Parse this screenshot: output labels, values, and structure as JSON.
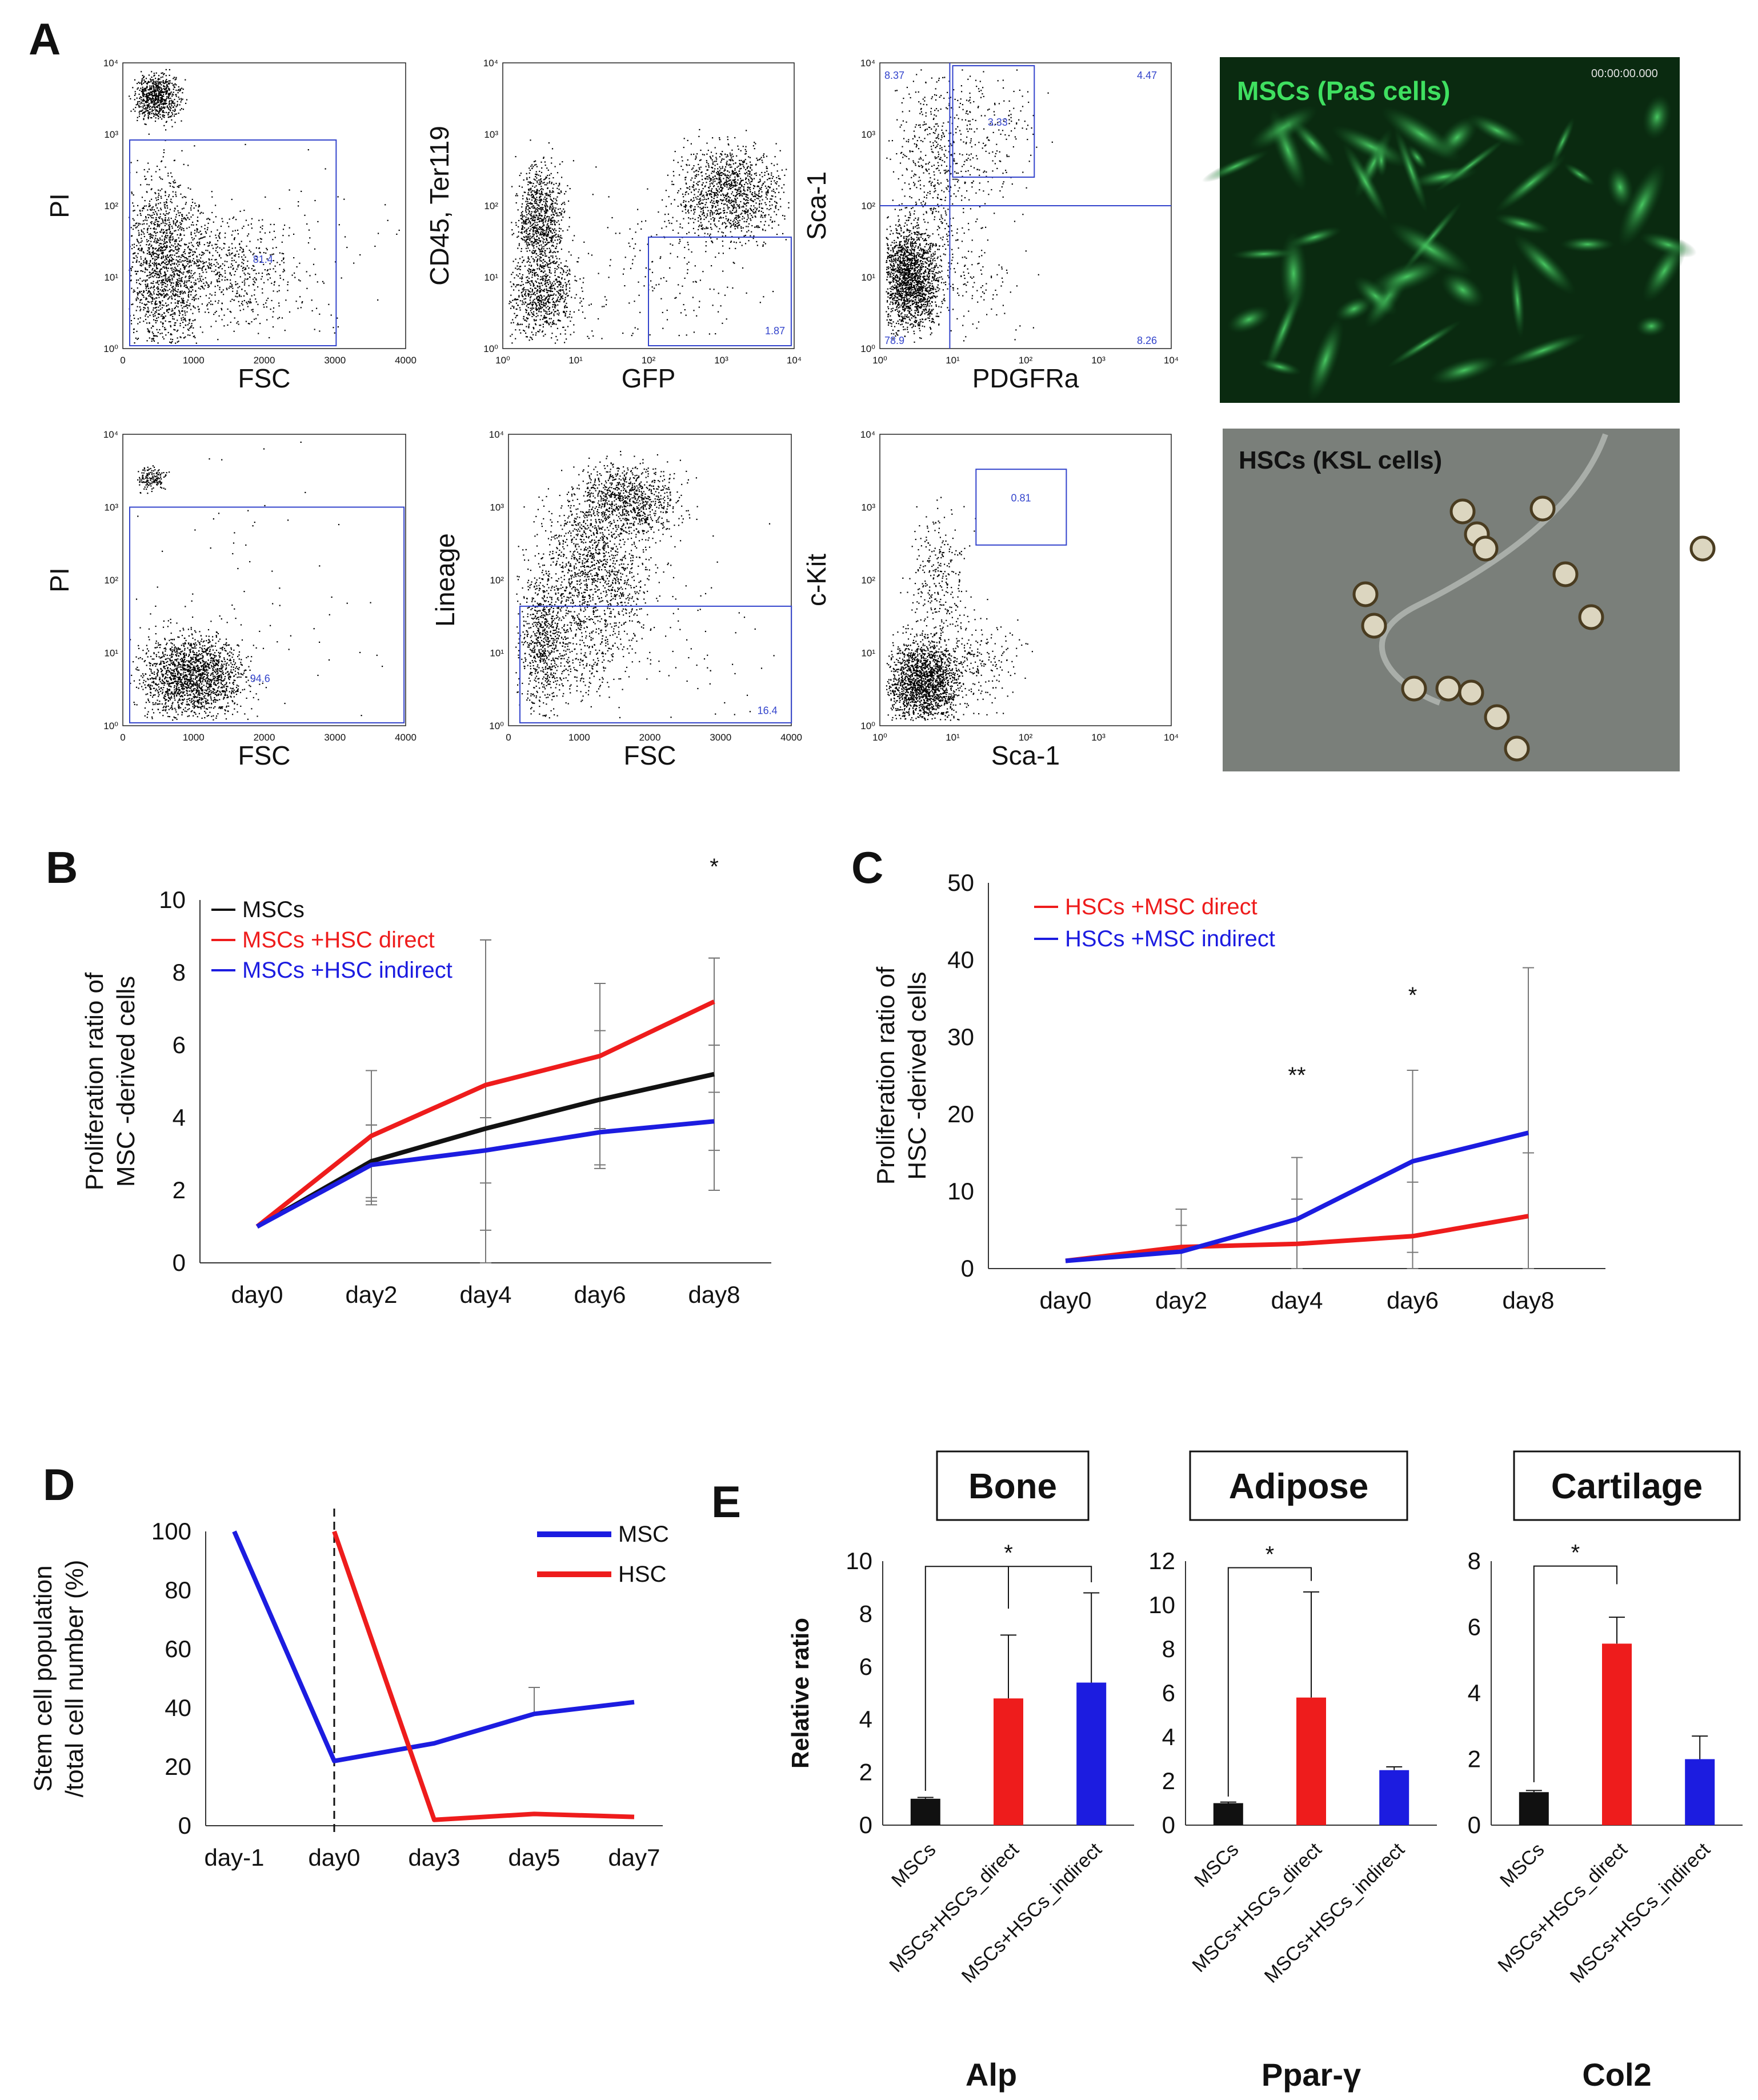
{
  "panels": {
    "A": "A",
    "B": "B",
    "C": "C",
    "D": "D",
    "E": "E"
  },
  "flow_plots": [
    {
      "id": "a1",
      "xlabel": "FSC",
      "ylabel": "PI",
      "xscale": "lin",
      "gate_value": "81.4"
    },
    {
      "id": "a2",
      "xlabel": "GFP",
      "ylabel": "CD45, Ter119",
      "xscale": "log",
      "gate_value": "1.87"
    },
    {
      "id": "a3",
      "xlabel": "PDGFRa",
      "ylabel": "Sca-1",
      "xscale": "log",
      "quadrants": {
        "ul": "8.37",
        "ur": "4.47",
        "ll": "78.9",
        "lr": "8.26",
        "inner": "3.33"
      }
    },
    {
      "id": "a4",
      "xlabel": "FSC",
      "ylabel": "PI",
      "xscale": "lin",
      "gate_value": "94.6"
    },
    {
      "id": "a5",
      "xlabel": "FSC",
      "ylabel": "Lineage",
      "xscale": "lin",
      "gate_value": "16.4"
    },
    {
      "id": "a6",
      "xlabel": "Sca-1",
      "ylabel": "c-Kit",
      "xscale": "log",
      "gate_value": "0.81"
    }
  ],
  "flow_ticks": {
    "lin_x": [
      "0",
      "1000",
      "2000",
      "3000",
      "4000"
    ],
    "log_x": [
      "10⁰",
      "10¹",
      "10²",
      "10³",
      "10⁴"
    ],
    "log_y": [
      "10⁰",
      "10¹",
      "10²",
      "10³",
      "10⁴"
    ]
  },
  "images": {
    "msc": {
      "label": "MSCs (PaS cells)",
      "timestamp": "00:00:00.000"
    },
    "hsc": {
      "label": "HSCs (KSL cells)"
    }
  },
  "chart_data": [
    {
      "id": "B",
      "type": "line",
      "categories": [
        "day0",
        "day2",
        "day4",
        "day6",
        "day8"
      ],
      "ylabel_lines": [
        "Proliferation ratio of",
        "MSC -derived cells"
      ],
      "ylim": [
        0,
        10
      ],
      "yticks": [
        "0",
        "2",
        "4",
        "6",
        "8",
        "10"
      ],
      "series": [
        {
          "name": "MSCs",
          "color": "#111111",
          "values": [
            1,
            2.8,
            3.7,
            4.5,
            5.2
          ],
          "err": [
            0,
            1.0,
            5.2,
            1.9,
            3.2
          ]
        },
        {
          "name": "MSCs +HSC direct",
          "color": "#ee1c1c",
          "values": [
            1,
            3.5,
            4.9,
            5.7,
            7.2
          ],
          "err": [
            0,
            1.8,
            4.0,
            2.0,
            1.2
          ]
        },
        {
          "name": "MSCs +HSC indirect",
          "color": "#1c1ce0",
          "values": [
            1,
            2.7,
            3.1,
            3.6,
            3.9
          ],
          "err": [
            0,
            1.1,
            0.9,
            0.9,
            0.8
          ]
        }
      ],
      "significance": [
        {
          "cat": "day8",
          "text": "*"
        }
      ]
    },
    {
      "id": "C",
      "type": "line",
      "categories": [
        "day0",
        "day2",
        "day4",
        "day6",
        "day8"
      ],
      "ylabel_lines": [
        "Proliferation ratio of",
        "HSC -derived cells"
      ],
      "ylim": [
        0,
        50
      ],
      "yticks": [
        "0",
        "10",
        "20",
        "30",
        "40",
        "50"
      ],
      "series": [
        {
          "name": "HSCs +MSC direct",
          "color": "#ee1c1c",
          "values": [
            1,
            2.8,
            3.2,
            4.2,
            6.8
          ],
          "err": [
            0,
            2.8,
            5.8,
            7.0,
            8.2
          ]
        },
        {
          "name": "HSCs +MSC indirect",
          "color": "#1c1ce0",
          "values": [
            1,
            2.2,
            6.4,
            13.9,
            17.6
          ],
          "err": [
            0,
            5.5,
            8.0,
            11.8,
            21.4
          ]
        }
      ],
      "significance": [
        {
          "cat": "day4",
          "text": "**"
        },
        {
          "cat": "day6",
          "text": "*"
        }
      ]
    },
    {
      "id": "D",
      "type": "line",
      "categories": [
        "day-1",
        "day0",
        "day3",
        "day5",
        "day7"
      ],
      "ylabel_lines": [
        "Stem cell population",
        "/total cell number (%)"
      ],
      "ylim": [
        0,
        100
      ],
      "yticks": [
        "0",
        "20",
        "40",
        "60",
        "80",
        "100"
      ],
      "series": [
        {
          "name": "MSC",
          "color": "#1c1ce0",
          "values": [
            100,
            22,
            28,
            38,
            42
          ],
          "err": [
            0,
            0,
            0,
            9,
            0
          ]
        },
        {
          "name": "HSC",
          "color": "#ee1c1c",
          "values": [
            null,
            100,
            2,
            4,
            3
          ],
          "err": [
            0,
            0,
            0,
            0,
            0
          ]
        }
      ],
      "vline": "day0"
    },
    {
      "id": "E1",
      "type": "bar",
      "title": "Bone",
      "gene": "Alp",
      "ylabel": "Relative ratio",
      "categories": [
        "MSCs",
        "MSCs+HSCs_direct",
        "MSCs+HSCs_indirect"
      ],
      "colors": [
        "#111111",
        "#ee1c1c",
        "#1c1ce0"
      ],
      "values": [
        1.0,
        4.8,
        5.4
      ],
      "err": [
        0.05,
        2.4,
        3.4
      ],
      "ylim": [
        0,
        10
      ],
      "yticks": [
        "0",
        "2",
        "4",
        "6",
        "8",
        "10"
      ],
      "significance": "*"
    },
    {
      "id": "E2",
      "type": "bar",
      "title": "Adipose",
      "gene": "Ppar-γ",
      "categories": [
        "MSCs",
        "MSCs+HSCs_direct",
        "MSCs+HSCs_indirect"
      ],
      "colors": [
        "#111111",
        "#ee1c1c",
        "#1c1ce0"
      ],
      "values": [
        1.0,
        5.8,
        2.5
      ],
      "err": [
        0.05,
        4.8,
        0.15
      ],
      "ylim": [
        0,
        12
      ],
      "yticks": [
        "0",
        "2",
        "4",
        "6",
        "8",
        "10",
        "12"
      ],
      "significance": "*"
    },
    {
      "id": "E3",
      "type": "bar",
      "title": "Cartilage",
      "gene": "Col2",
      "categories": [
        "MSCs",
        "MSCs+HSCs_direct",
        "MSCs+HSCs_indirect"
      ],
      "colors": [
        "#111111",
        "#ee1c1c",
        "#1c1ce0"
      ],
      "values": [
        1.0,
        5.5,
        2.0
      ],
      "err": [
        0.05,
        0.8,
        0.7
      ],
      "ylim": [
        0,
        8
      ],
      "yticks": [
        "0",
        "2",
        "4",
        "6",
        "8"
      ],
      "significance": "*"
    }
  ]
}
